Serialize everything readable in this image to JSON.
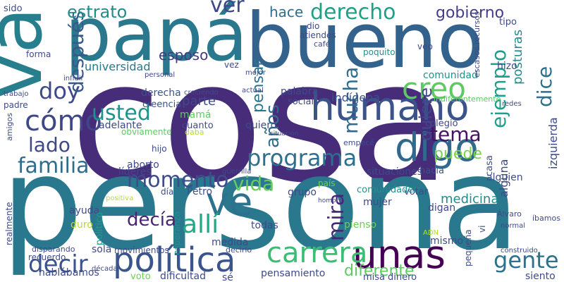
{
  "words": [
    "cosa",
    "persona",
    "bueno",
    "papá",
    "va",
    "humano",
    "digo",
    "política",
    "unas",
    "carrera",
    "ve",
    "allí",
    "creo",
    "cómo",
    "programa",
    "momento",
    "vida",
    "familia",
    "lado",
    "usted",
    "doy",
    "decir",
    "gente",
    "decía",
    "ejemplo",
    "dice",
    "mucha",
    "mira",
    "años",
    "después",
    "quiere",
    "tema",
    "puede",
    "derecho",
    "hace",
    "gobierno",
    "ver",
    "estrato",
    "esposo",
    "pensar",
    "universidad",
    "mamá",
    "derecha",
    "parte",
    "creencia",
    "adelante",
    "obviamente",
    "cuanto",
    "quiero",
    "hacia",
    "alguien",
    "comunidad",
    "indígena",
    "palabra",
    "social",
    "colegio",
    "diferente",
    "pensamiento",
    "posturas",
    "veo",
    "tipo",
    "hizo",
    "Petro",
    "grupo",
    "medicina",
    "mujer",
    "pienso",
    "digan",
    "situaciones",
    "comunidades",
    "votar",
    "mismo",
    "medida",
    "todas",
    "sola",
    "movimientos",
    "dificultad",
    "voto",
    "hablábamos",
    "dinero",
    "siento",
    "misa",
    "sé",
    "ayuda",
    "duro",
    "líderes",
    "aborto",
    "hijo",
    "día",
    "esperanza",
    "político",
    "realmente",
    "amigos",
    "sido",
    "vez",
    "forma",
    "padre",
    "trabajo",
    "personal",
    "creciendo",
    "influir",
    "dio",
    "atiendes",
    "café",
    "poquito",
    "mejor",
    "actual",
    "país",
    "casa",
    "vi",
    "pequeña",
    "ADN",
    "Álvaro",
    "redes",
    "indiferentemente",
    "empecé",
    "situación",
    "daba",
    "guerrilla",
    "hombre",
    "década",
    "recuerdo",
    "disparando",
    "positiva",
    "decirlo",
    "construido",
    "normal",
    "íbamos",
    "alguna",
    "izquierda",
    "escasos recursos"
  ]
}
